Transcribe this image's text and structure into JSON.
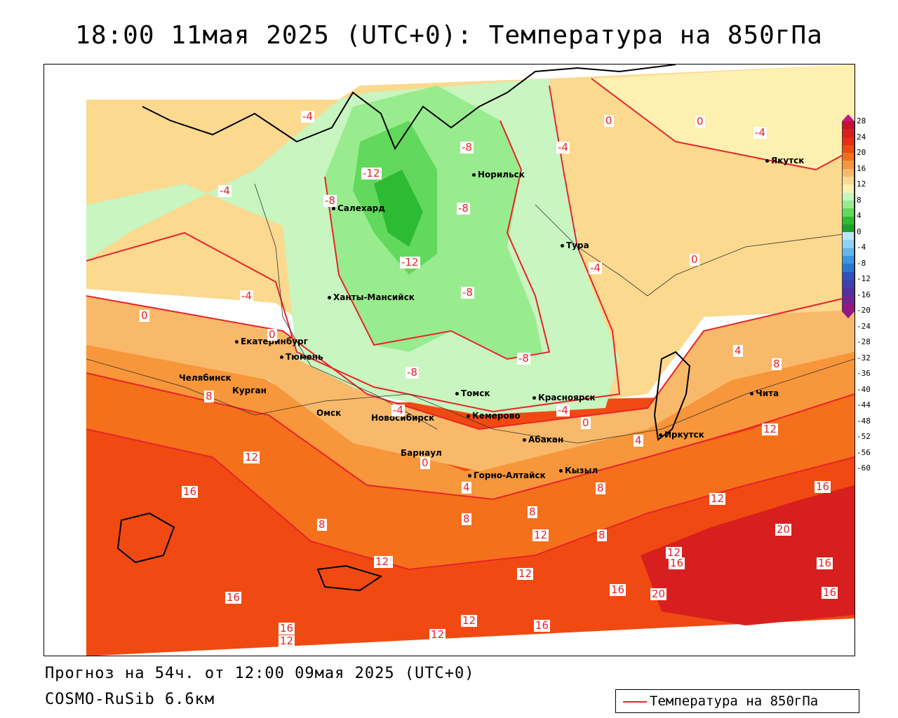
{
  "title": "18:00 11мая 2025 (UTC+0): Температура на 850гПа",
  "footer": {
    "forecast": "Прогноз на 54ч. от 12:00 09мая 2025 (UTC+0)",
    "model": "COSMO-RuSib 6.6км"
  },
  "legend": {
    "label": "Температура на 850гПа",
    "line_color": "#e8232a"
  },
  "colorbar": {
    "ticks": [
      "28",
      "24",
      "20",
      "16",
      "12",
      "8",
      "4",
      "0",
      "-4",
      "-8",
      "-12",
      "-16",
      "-20",
      "-24",
      "-28",
      "-32",
      "-36",
      "-40",
      "-44",
      "-48",
      "-52",
      "-56",
      "-60"
    ],
    "colors": [
      "#c8102e",
      "#d81f1f",
      "#e62e18",
      "#f04a12",
      "#f5701a",
      "#f7963a",
      "#f9b96a",
      "#fbd98f",
      "#fdf0b0",
      "#c8f5c0",
      "#98ec8e",
      "#62d85c",
      "#2ebb34",
      "#1f9e2a",
      "#b8e6f8",
      "#8fd0f2",
      "#64b6ec",
      "#3a96e0",
      "#2878cc",
      "#3050c0",
      "#4040b0",
      "#5030a0",
      "#702890",
      "#901880"
    ]
  },
  "cities": [
    {
      "name": "Норильск"
    },
    {
      "name": "Якутск"
    },
    {
      "name": "Салехард"
    },
    {
      "name": "Тура"
    },
    {
      "name": "Ханты-Мансийск"
    },
    {
      "name": "Екатеринбург"
    },
    {
      "name": "Тюмень"
    },
    {
      "name": "Челябинск"
    },
    {
      "name": "Курган"
    },
    {
      "name": "Омск"
    },
    {
      "name": "Новосибирск"
    },
    {
      "name": "Томск"
    },
    {
      "name": "Кемерово"
    },
    {
      "name": "Красноярск"
    },
    {
      "name": "Барнаул"
    },
    {
      "name": "Абакан"
    },
    {
      "name": "Горно-Алтайск"
    },
    {
      "name": "Кызыл"
    },
    {
      "name": "Иркутск"
    },
    {
      "name": "Чита"
    }
  ],
  "contour_labels": [
    "-4",
    "0",
    "0",
    "-4",
    "-8",
    "-4",
    "-12",
    "-8",
    "-8",
    "-4",
    "-12",
    "-4",
    "0",
    "-8",
    "-4",
    "0",
    "-8",
    "-8",
    "4",
    "8",
    "0",
    "-4",
    "-4",
    "0",
    "4",
    "8",
    "12",
    "16",
    "12",
    "8",
    "12",
    "0",
    "4",
    "8",
    "8",
    "8",
    "12",
    "8",
    "12",
    "16",
    "12",
    "16",
    "16",
    "12",
    "12",
    "16",
    "20",
    "16",
    "12",
    "16",
    "20",
    "16",
    "16",
    "12",
    "12"
  ]
}
